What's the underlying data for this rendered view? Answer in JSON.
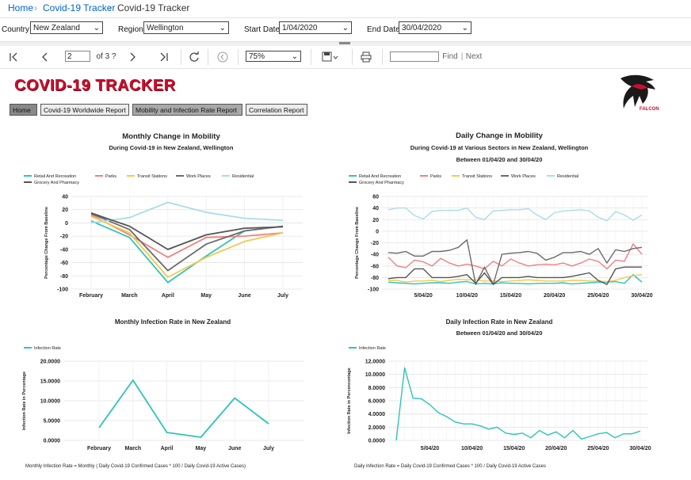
{
  "breadcrumb": {
    "home": "Home",
    "link": "Covid-19 Tracker",
    "current": "Covid-19 Tracker"
  },
  "params": {
    "country_label": "Country",
    "country_value": "New Zealand",
    "region_label": "Region",
    "region_value": "Wellington",
    "start_label": "Start Date",
    "start_value": "1/04/2020",
    "end_label": "End Date",
    "end_value": "30/04/2020"
  },
  "toolbar": {
    "page": "2",
    "of": "of 3 ?",
    "zoom": "75%",
    "find": "Find",
    "sep": "|",
    "next": "Next",
    "find_value": ""
  },
  "report": {
    "logo": "COVID-19 TRACKER",
    "falcon_label": "FALCON",
    "nav": [
      "Home",
      "Covid-19 Worldwide Report",
      "Mobility and Infection Rate Report",
      "Correlation Report"
    ],
    "formula_monthly": "Monthly Infection Rate = Monthly ( Daily Covid-19 Confirmed Cases * 100 / Daily Covid-19 Active Cases)",
    "formula_daily": "Daily Infection Rate = Daily Covid-19 Confirmed Cases * 100 / Daily Covid-19 Active Cases"
  },
  "colors": {
    "retail": "#2ec4b6",
    "parks": "#f08080",
    "transit": "#f2c94c",
    "work": "#6b6b6b",
    "residential": "#a8dcea",
    "grocery": "#555555",
    "infection": "#2ec4b6",
    "brand": "#c8102e"
  },
  "chart_data": [
    {
      "type": "line",
      "title": "Monthly Change in Mobility",
      "subtitle": "During Covid-19 in New Zealand, Wellington",
      "ylabel": "Percentage Change From Baseline",
      "ylim": [
        -100,
        40
      ],
      "yticks": [
        "40",
        "20",
        "0",
        "-20",
        "-40",
        "-60",
        "-80",
        "-100"
      ],
      "categories": [
        "February",
        "March",
        "April",
        "May",
        "June",
        "July"
      ],
      "series": [
        {
          "name": "Retail And Recreation",
          "color": "#2ec4b6",
          "values": [
            3,
            -22,
            -90,
            -50,
            -12,
            -5
          ]
        },
        {
          "name": "Parks",
          "color": "#f08080",
          "values": [
            12,
            -18,
            -52,
            -22,
            -20,
            -15
          ]
        },
        {
          "name": "Transit Stations",
          "color": "#f2c94c",
          "values": [
            10,
            -15,
            -82,
            -52,
            -28,
            -15
          ]
        },
        {
          "name": "Work Places",
          "color": "#6b6b6b",
          "values": [
            14,
            -10,
            -72,
            -32,
            -12,
            -5
          ]
        },
        {
          "name": "Residential",
          "color": "#a8dcea",
          "values": [
            0,
            8,
            31,
            16,
            7,
            4
          ]
        },
        {
          "name": "Grocery And Pharmacy",
          "color": "#555555",
          "values": [
            15,
            -5,
            -40,
            -18,
            -8,
            -6
          ]
        }
      ]
    },
    {
      "type": "line",
      "title": "Daily Change in Mobility",
      "subtitle": "During Covid-19 at Various Sectors in New Zealand, Wellington",
      "subtitle2": "Between 01/04/20 and 30/04/20",
      "ylabel": "Percentage Change From Baseline",
      "ylim": [
        -100,
        60
      ],
      "yticks": [
        "60",
        "40",
        "20",
        "0",
        "-20",
        "-40",
        "-60",
        "-80",
        "-100"
      ],
      "xticks": [
        "5/04/20",
        "10/04/20",
        "15/04/20",
        "20/04/20",
        "25/04/20",
        "30/04/20"
      ],
      "series": [
        {
          "name": "Retail And Recreation",
          "color": "#2ec4b6",
          "values": [
            -88,
            -89,
            -90,
            -91,
            -90,
            -89,
            -89,
            -90,
            -88,
            -87,
            -91,
            -90,
            -91,
            -89,
            -90,
            -90,
            -91,
            -90,
            -90,
            -90,
            -89,
            -91,
            -90,
            -89,
            -88,
            -88,
            -87,
            -90,
            -75,
            -88
          ]
        },
        {
          "name": "Parks",
          "color": "#f08080",
          "values": [
            -45,
            -60,
            -63,
            -50,
            -53,
            -60,
            -47,
            -55,
            -60,
            -57,
            -60,
            -65,
            -52,
            -60,
            -48,
            -55,
            -60,
            -58,
            -57,
            -58,
            -55,
            -60,
            -55,
            -48,
            -52,
            -65,
            -50,
            -52,
            -22,
            -40
          ]
        },
        {
          "name": "Transit Stations",
          "color": "#f2c94c",
          "values": [
            -85,
            -85,
            -88,
            -86,
            -86,
            -85,
            -87,
            -85,
            -83,
            -84,
            -84,
            -86,
            -86,
            -87,
            -86,
            -85,
            -84,
            -85,
            -86,
            -86,
            -86,
            -85,
            -85,
            -86,
            -86,
            -87,
            -85,
            -80,
            -77,
            -75
          ]
        },
        {
          "name": "Work Places",
          "color": "#6b6b6b",
          "values": [
            -37,
            -38,
            -35,
            -43,
            -43,
            -35,
            -35,
            -33,
            -28,
            -15,
            -92,
            -62,
            -92,
            -40,
            -38,
            -37,
            -35,
            -38,
            -50,
            -45,
            -37,
            -37,
            -35,
            -40,
            -30,
            -55,
            -32,
            -35,
            -30,
            -28
          ]
        },
        {
          "name": "Residential",
          "color": "#a8dcea",
          "values": [
            37,
            40,
            40,
            27,
            21,
            34,
            36,
            36,
            36,
            40,
            24,
            20,
            35,
            36,
            37,
            37,
            39,
            28,
            20,
            32,
            35,
            36,
            37,
            35,
            24,
            18,
            34,
            28,
            19,
            28
          ]
        },
        {
          "name": "Grocery And Pharmacy",
          "color": "#555555",
          "values": [
            -82,
            -80,
            -80,
            -65,
            -65,
            -80,
            -80,
            -80,
            -78,
            -75,
            -90,
            -72,
            -92,
            -80,
            -80,
            -80,
            -78,
            -80,
            -80,
            -80,
            -80,
            -78,
            -75,
            -72,
            -85,
            -92,
            -65,
            -62,
            -62,
            -62
          ]
        }
      ]
    },
    {
      "type": "line",
      "title": "Monthly Infection Rate in New Zealand",
      "ylabel": "Infection Rate in Percentage",
      "ylim": [
        0,
        20
      ],
      "yticks": [
        "20.0000",
        "15.0000",
        "10.0000",
        "5.0000",
        "0.0000"
      ],
      "categories": [
        "February",
        "March",
        "April",
        "May",
        "June",
        "July"
      ],
      "series": [
        {
          "name": "Infection Rate",
          "color": "#2ec4b6",
          "values": [
            3.2,
            15.2,
            2.0,
            0.8,
            10.7,
            4.2
          ]
        }
      ]
    },
    {
      "type": "line",
      "title": "Daily Infection Rate in New Zealand",
      "subtitle": "Between 01/04/20 and 30/04/20",
      "ylabel": "Infection Rate in Percencentage",
      "ylim": [
        0,
        12
      ],
      "yticks": [
        "12.0000",
        "10.0000",
        "8.0000",
        "6.0000",
        "4.0000",
        "2.0000",
        "0.0000"
      ],
      "xticks": [
        "5/04/20",
        "10/04/20",
        "15/04/20",
        "20/04/20",
        "25/04/20",
        "30/04/20"
      ],
      "series": [
        {
          "name": "Infection Rate",
          "color": "#2ec4b6",
          "values": [
            0,
            11,
            6.4,
            6.3,
            5.4,
            4.2,
            3.6,
            2.8,
            2.5,
            2.5,
            2.2,
            1.7,
            2.0,
            1.1,
            0.9,
            1.1,
            0.4,
            1.5,
            0.8,
            1.3,
            0.4,
            1.5,
            0.2,
            0.6,
            1.0,
            1.2,
            0.4,
            1.0,
            1.0,
            1.4
          ]
        }
      ]
    }
  ]
}
